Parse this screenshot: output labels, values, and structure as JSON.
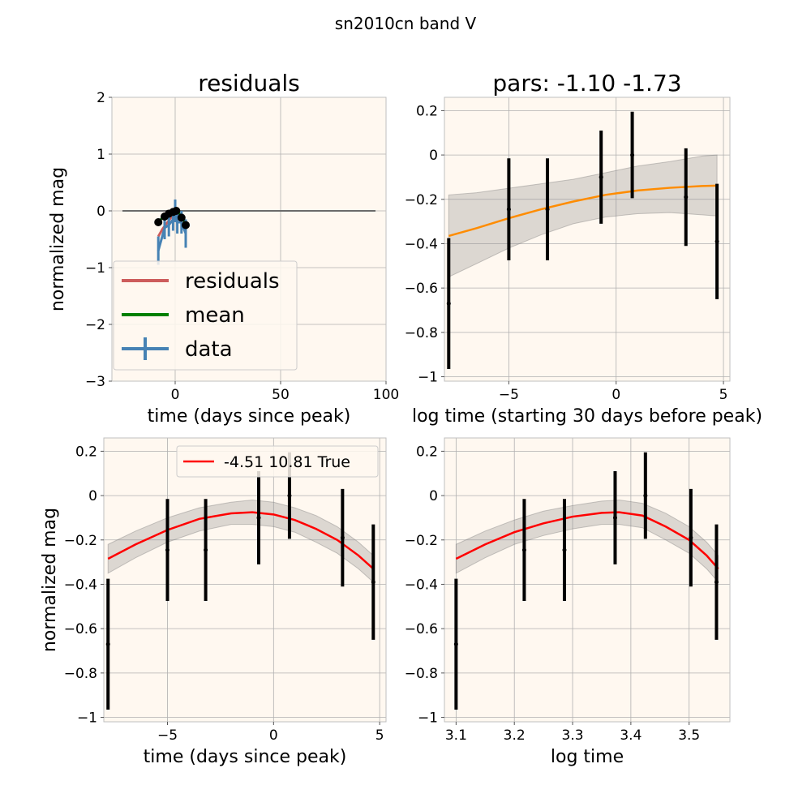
{
  "figure": {
    "suptitle": "sn2010cn band V"
  },
  "chart_data": [
    {
      "id": "tl",
      "type": "line",
      "title": "residuals",
      "xlabel": "time (days since peak)",
      "ylabel": "normalized mag",
      "xlim": [
        -30,
        100
      ],
      "ylim": [
        -3,
        2
      ],
      "xticks": [
        0,
        50,
        100
      ],
      "yticks": [
        -3,
        -2,
        -1,
        0,
        1,
        2
      ],
      "grid": true,
      "legend": {
        "placement": "lower-left",
        "entries": [
          "residuals",
          "mean",
          "data"
        ]
      },
      "zero_line": {
        "x": [
          -25,
          95
        ],
        "y": 0,
        "color": "#6b6b6b"
      },
      "series": [
        {
          "name": "residuals",
          "color": "#cd5c5c",
          "x": [
            -8,
            -6,
            -4,
            -2,
            0,
            2,
            4
          ],
          "y": [
            -0.45,
            -0.32,
            -0.22,
            -0.12,
            -0.08,
            -0.15,
            -0.25
          ]
        },
        {
          "name": "mean",
          "color": "#008000",
          "x": [
            -8,
            -6,
            -4,
            -2,
            0,
            2,
            4,
            5
          ],
          "y": [
            -0.2,
            -0.12,
            -0.07,
            -0.03,
            0.0,
            -0.05,
            -0.15,
            -0.25
          ]
        },
        {
          "name": "data",
          "color": "#4682b4",
          "x": [
            -8,
            -5,
            -3,
            -1,
            0,
            1,
            3,
            5
          ],
          "y": [
            -0.7,
            -0.3,
            -0.25,
            -0.15,
            0.0,
            -0.2,
            -0.2,
            -0.4
          ],
          "err": [
            0.25,
            0.2,
            0.2,
            0.2,
            0.2,
            0.2,
            0.2,
            0.25
          ]
        }
      ],
      "markers": {
        "color": "#000000",
        "x": [
          -8,
          -5,
          -3,
          -1,
          0.5,
          3,
          5
        ],
        "y": [
          -0.2,
          -0.1,
          -0.05,
          -0.02,
          0.0,
          -0.12,
          -0.25
        ]
      }
    },
    {
      "id": "tr",
      "type": "line",
      "title": "pars: -1.10 -1.73",
      "xlabel": "log time (starting 30 days before peak)",
      "ylabel": "",
      "xlim": [
        -8.0,
        5.3
      ],
      "ylim": [
        -1.02,
        0.26
      ],
      "xticks": [
        -5,
        0,
        5
      ],
      "yticks": [
        -1.0,
        -0.8,
        -0.6,
        -0.4,
        -0.2,
        0.0,
        0.2
      ],
      "grid": true,
      "curve": {
        "color": "#ff8c00",
        "x": [
          -7.8,
          -6.5,
          -5.0,
          -3.5,
          -2.0,
          -0.5,
          1.0,
          2.5,
          4.0,
          4.7
        ],
        "y": [
          -0.365,
          -0.33,
          -0.285,
          -0.245,
          -0.21,
          -0.18,
          -0.16,
          -0.148,
          -0.14,
          -0.138
        ],
        "band_upper": [
          -0.18,
          -0.17,
          -0.15,
          -0.13,
          -0.11,
          -0.08,
          -0.05,
          -0.03,
          -0.005,
          0.0
        ],
        "band_lower": [
          -0.55,
          -0.49,
          -0.42,
          -0.36,
          -0.31,
          -0.28,
          -0.265,
          -0.26,
          -0.27,
          -0.275
        ]
      },
      "points": {
        "color": "#000000",
        "x": [
          -7.8,
          -5.0,
          -3.2,
          -0.7,
          0.75,
          3.25,
          4.7
        ],
        "y": [
          -0.67,
          -0.245,
          -0.245,
          -0.1,
          0.0,
          -0.19,
          -0.39
        ],
        "err": [
          0.295,
          0.23,
          0.23,
          0.21,
          0.195,
          0.22,
          0.26
        ]
      }
    },
    {
      "id": "bl",
      "type": "line",
      "title": "",
      "xlabel": "time (days since peak)",
      "ylabel": "normalized mag",
      "xlim": [
        -8.0,
        5.3
      ],
      "ylim": [
        -1.02,
        0.26
      ],
      "xticks": [
        -5,
        0,
        5
      ],
      "yticks": [
        -1.0,
        -0.8,
        -0.6,
        -0.4,
        -0.2,
        0.0,
        0.2
      ],
      "grid": true,
      "legend": {
        "placement": "top-right",
        "entries": [
          "-4.51 10.81 True"
        ]
      },
      "curve": {
        "name": "-4.51 10.81 True",
        "color": "#ff0000",
        "x": [
          -7.8,
          -6.5,
          -5.0,
          -3.5,
          -2.0,
          -1.0,
          0.0,
          1.0,
          2.0,
          3.0,
          4.0,
          4.7
        ],
        "y": [
          -0.285,
          -0.22,
          -0.155,
          -0.105,
          -0.08,
          -0.075,
          -0.085,
          -0.11,
          -0.15,
          -0.2,
          -0.27,
          -0.33
        ],
        "band_upper": [
          -0.22,
          -0.16,
          -0.1,
          -0.055,
          -0.03,
          -0.02,
          -0.03,
          -0.055,
          -0.09,
          -0.14,
          -0.21,
          -0.27
        ],
        "band_lower": [
          -0.35,
          -0.28,
          -0.21,
          -0.16,
          -0.13,
          -0.13,
          -0.14,
          -0.165,
          -0.21,
          -0.26,
          -0.33,
          -0.39
        ]
      },
      "points": {
        "color": "#000000",
        "x": [
          -7.8,
          -5.0,
          -3.2,
          -0.7,
          0.75,
          3.25,
          4.7
        ],
        "y": [
          -0.67,
          -0.245,
          -0.245,
          -0.1,
          0.0,
          -0.19,
          -0.39
        ],
        "err": [
          0.295,
          0.23,
          0.23,
          0.21,
          0.195,
          0.22,
          0.26
        ]
      }
    },
    {
      "id": "br",
      "type": "line",
      "title": "",
      "xlabel": "log time",
      "ylabel": "",
      "xlim": [
        3.08,
        3.57
      ],
      "ylim": [
        -1.02,
        0.26
      ],
      "xticks": [
        3.1,
        3.2,
        3.3,
        3.4,
        3.5
      ],
      "yticks": [
        -1.0,
        -0.8,
        -0.6,
        -0.4,
        -0.2,
        0.0,
        0.2
      ],
      "grid": true,
      "curve": {
        "color": "#ff0000",
        "x": [
          3.1,
          3.15,
          3.2,
          3.25,
          3.3,
          3.35,
          3.38,
          3.42,
          3.46,
          3.5,
          3.53,
          3.55
        ],
        "y": [
          -0.285,
          -0.22,
          -0.165,
          -0.125,
          -0.095,
          -0.078,
          -0.075,
          -0.09,
          -0.14,
          -0.2,
          -0.27,
          -0.33
        ],
        "band_upper": [
          -0.22,
          -0.16,
          -0.11,
          -0.07,
          -0.045,
          -0.025,
          -0.02,
          -0.035,
          -0.08,
          -0.14,
          -0.21,
          -0.27
        ],
        "band_lower": [
          -0.35,
          -0.28,
          -0.22,
          -0.18,
          -0.15,
          -0.13,
          -0.13,
          -0.145,
          -0.2,
          -0.26,
          -0.33,
          -0.39
        ]
      },
      "points": {
        "color": "#000000",
        "x": [
          3.1,
          3.217,
          3.286,
          3.373,
          3.425,
          3.503,
          3.547
        ],
        "y": [
          -0.67,
          -0.245,
          -0.245,
          -0.1,
          0.0,
          -0.19,
          -0.39
        ],
        "err": [
          0.295,
          0.23,
          0.23,
          0.21,
          0.195,
          0.22,
          0.26
        ]
      }
    }
  ]
}
